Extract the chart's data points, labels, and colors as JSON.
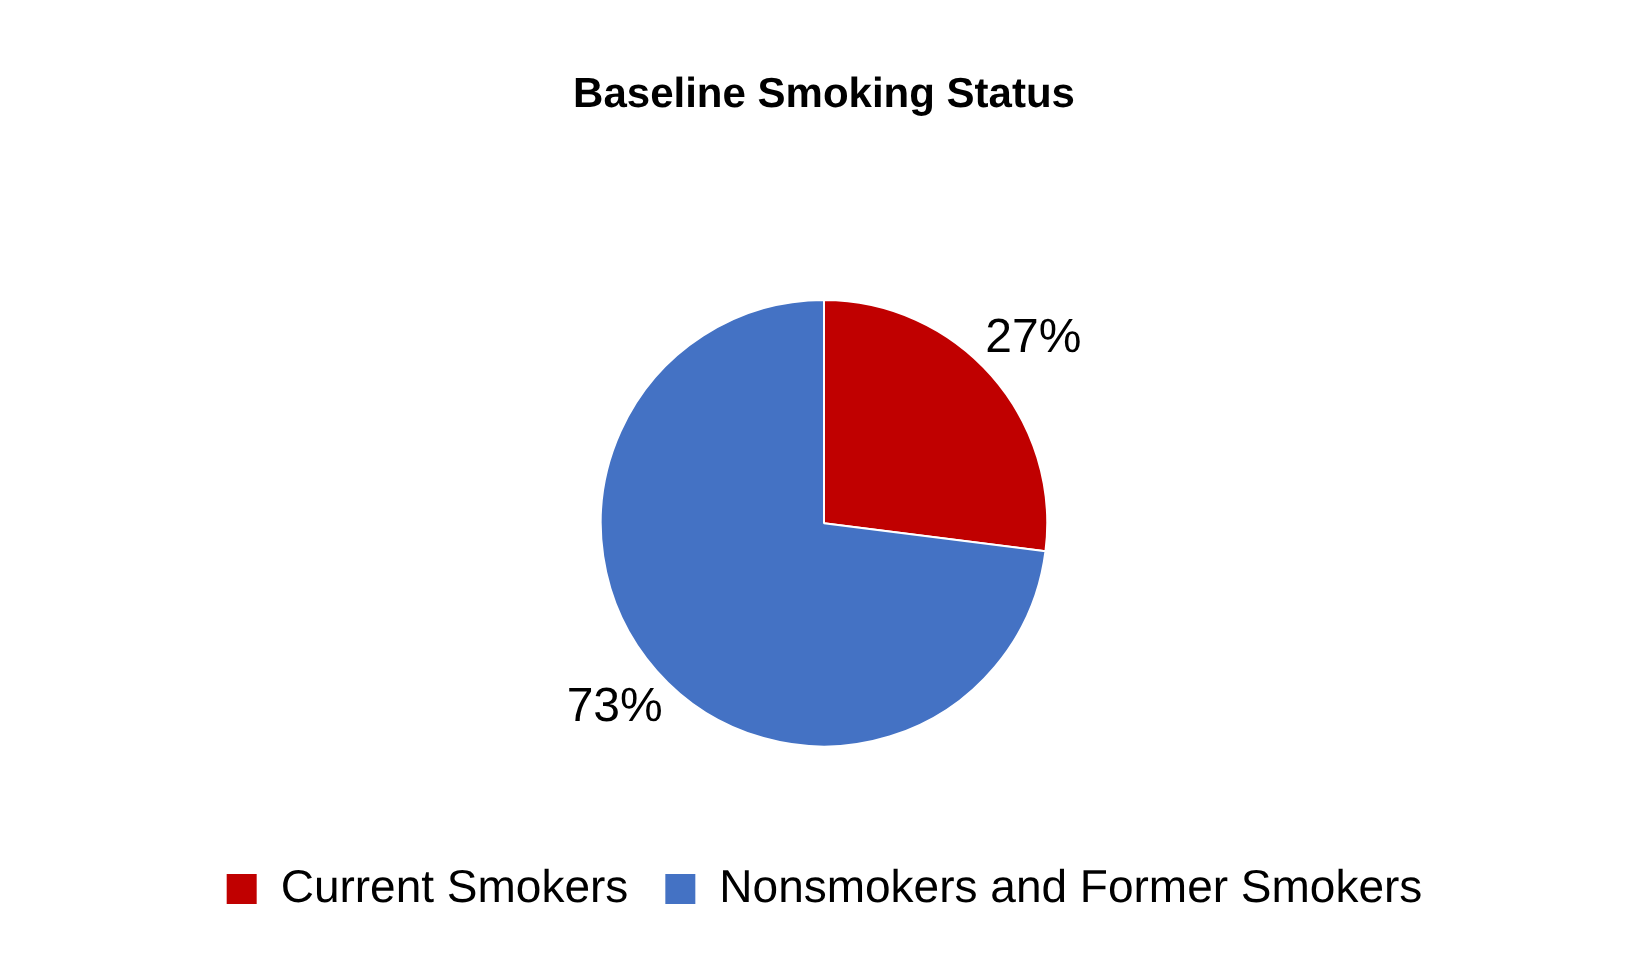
{
  "chart_data": {
    "type": "pie",
    "title": "Baseline Smoking Status",
    "categories": [
      "Current Smokers",
      "Nonsmokers and Former Smokers"
    ],
    "values": [
      27,
      73
    ],
    "colors": [
      "#c00000",
      "#4472c4"
    ],
    "value_labels": [
      "27%",
      "73%"
    ],
    "legend": "bottom"
  }
}
